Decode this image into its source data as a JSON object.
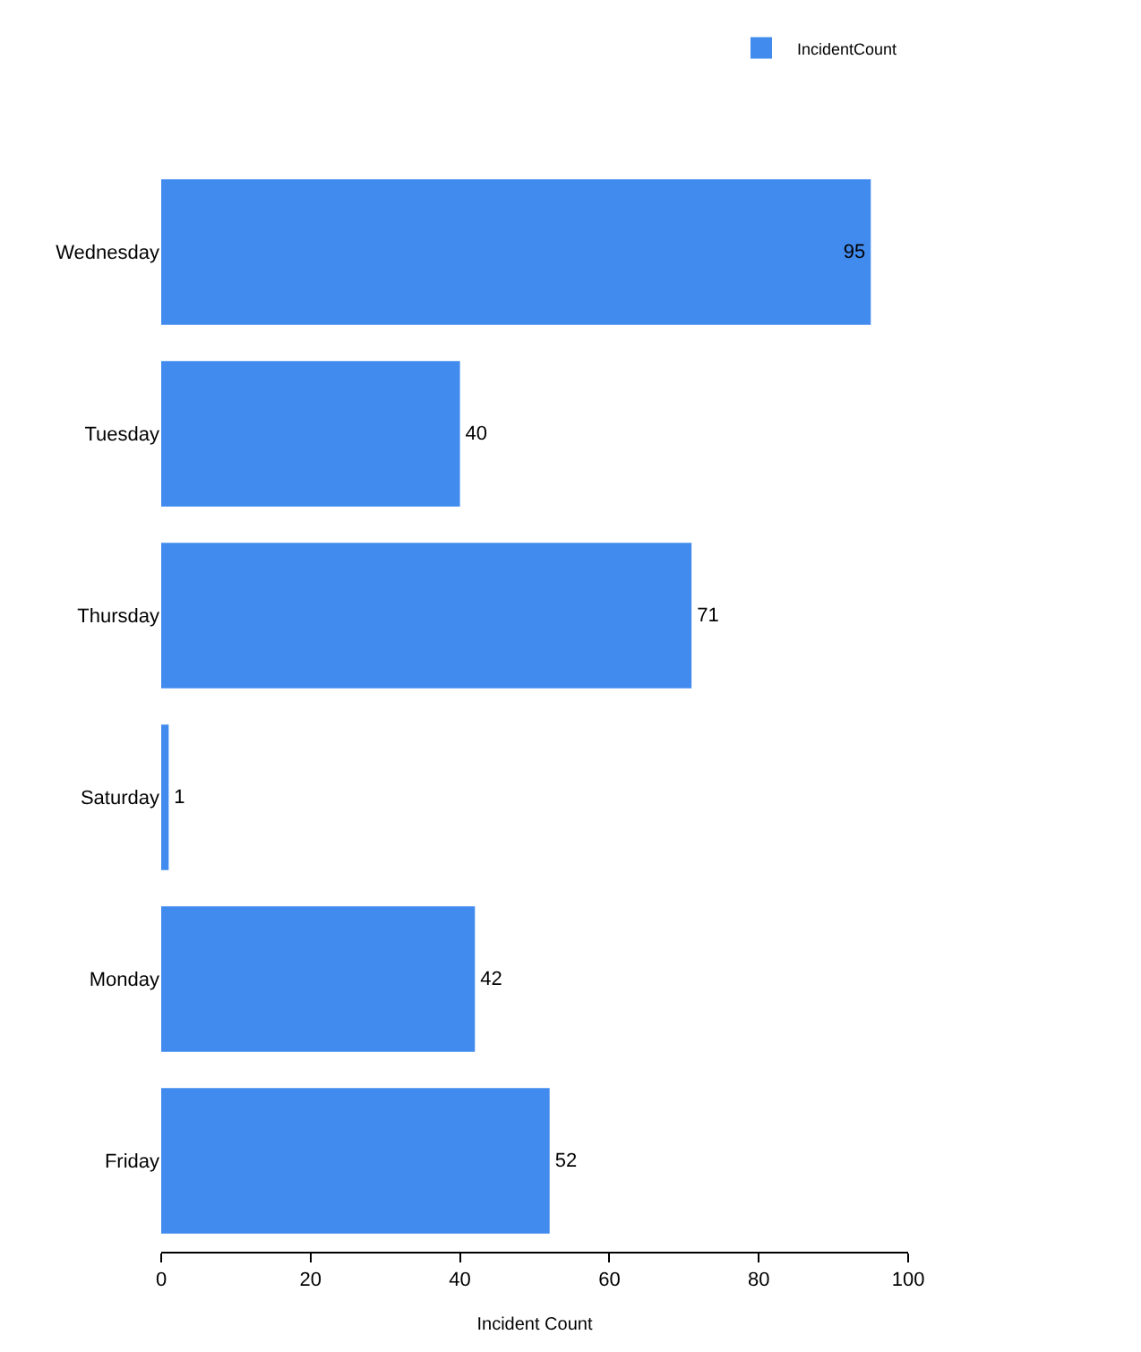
{
  "chart_data": {
    "type": "bar",
    "orientation": "horizontal",
    "xlabel": "Incident Count",
    "categories": [
      "Wednesday",
      "Tuesday",
      "Thursday",
      "Saturday",
      "Monday",
      "Friday"
    ],
    "series": [
      {
        "name": "IncidentCount",
        "color": "#418bef",
        "values": [
          95,
          40,
          71,
          1,
          42,
          52
        ]
      }
    ],
    "data_labels": true,
    "xlim": [
      0,
      100
    ],
    "xticks": [
      0,
      20,
      40,
      60,
      80,
      100
    ],
    "legend": "top right"
  }
}
